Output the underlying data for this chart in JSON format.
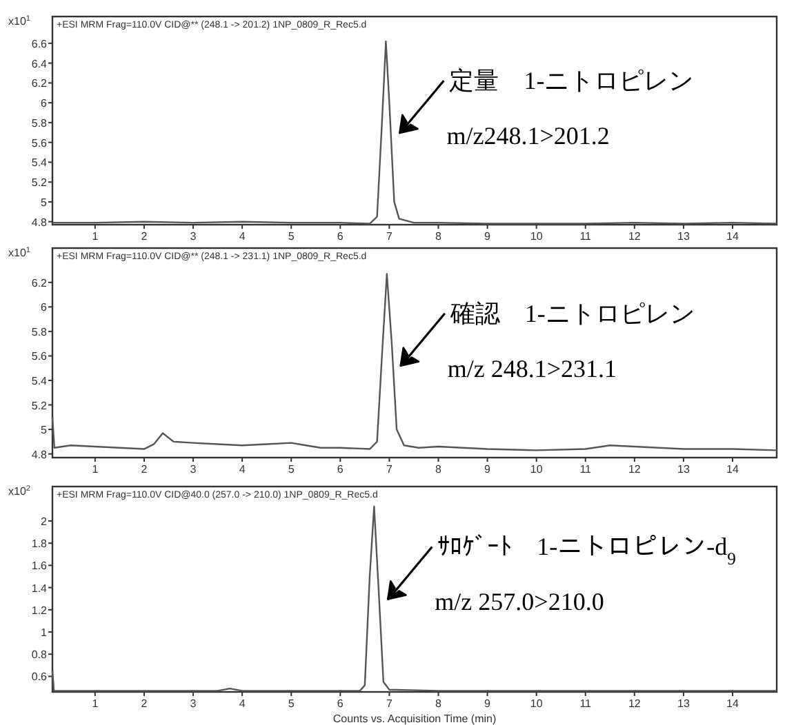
{
  "chart_data": [
    {
      "type": "line",
      "title": "+ESI MRM Frag=110.0V CID@** (248.1 -> 201.2) 1NP_0809_R_Rec5.d",
      "ylabel": "x10$^{1}$",
      "xlim": [
        0.13,
        14.9
      ],
      "ylim": [
        4.77,
        6.87
      ],
      "xticks": [
        1,
        2,
        3,
        4,
        5,
        6,
        7,
        8,
        9,
        10,
        11,
        12,
        13,
        14
      ],
      "yticks": [
        4.8,
        5,
        5.2,
        5.4,
        5.6,
        5.8,
        6,
        6.2,
        6.4,
        6.6
      ],
      "grid": false,
      "x": [
        0.13,
        1,
        2,
        3,
        4,
        5,
        6,
        6.6,
        6.75,
        6.85,
        6.93,
        7.0,
        7.1,
        7.2,
        7.5,
        8,
        9,
        10,
        11,
        12,
        13,
        14,
        14.9
      ],
      "series": [
        {
          "color": "#555555",
          "values": [
            4.79,
            4.79,
            4.8,
            4.79,
            4.8,
            4.79,
            4.79,
            4.78,
            4.85,
            5.8,
            6.62,
            6.0,
            5.0,
            4.83,
            4.79,
            4.79,
            4.78,
            4.78,
            4.78,
            4.79,
            4.78,
            4.79,
            4.78
          ]
        }
      ],
      "annotations": [
        "定量　1-ニトロピレン",
        "m/z248.1>201.2"
      ]
    },
    {
      "type": "line",
      "title": "+ESI MRM Frag=110.0V CID@** (248.1 -> 231.1) 1NP_0809_R_Rec5.d",
      "ylabel": "x10$^{1}$",
      "xlim": [
        0.13,
        14.9
      ],
      "ylim": [
        4.77,
        6.48
      ],
      "xticks": [
        1,
        2,
        3,
        4,
        5,
        6,
        7,
        8,
        9,
        10,
        11,
        12,
        13,
        14
      ],
      "yticks": [
        4.8,
        5,
        5.2,
        5.4,
        5.6,
        5.8,
        6,
        6.2
      ],
      "grid": false,
      "x": [
        0.13,
        0.17,
        0.5,
        1,
        1.5,
        2,
        2.2,
        2.38,
        2.6,
        3,
        3.5,
        4,
        4.5,
        5,
        5.3,
        5.6,
        6,
        6.6,
        6.75,
        6.85,
        6.95,
        7.05,
        7.15,
        7.3,
        7.6,
        8,
        9,
        10,
        11,
        11.5,
        12,
        12.5,
        13,
        14,
        14.9
      ],
      "series": [
        {
          "color": "#555555",
          "values": [
            5.1,
            4.85,
            4.87,
            4.86,
            4.85,
            4.84,
            4.88,
            4.97,
            4.9,
            4.89,
            4.88,
            4.87,
            4.88,
            4.89,
            4.87,
            4.85,
            4.85,
            4.84,
            4.9,
            5.6,
            6.27,
            5.7,
            5.0,
            4.87,
            4.85,
            4.86,
            4.84,
            4.83,
            4.84,
            4.87,
            4.86,
            4.85,
            4.84,
            4.84,
            4.83
          ]
        }
      ],
      "annotations": [
        "確認　1-ニトロピレン",
        "m/z 248.1>231.1"
      ]
    },
    {
      "type": "line",
      "title": "+ESI MRM Frag=110.0V CID@40.0 (257.0 -> 210.0) 1NP_0809_R_Rec5.d",
      "ylabel": "x10$^{2}$",
      "xlabel": "Counts vs. Acquisition Time (min)",
      "xlim": [
        0.13,
        14.9
      ],
      "ylim": [
        0.46,
        2.31
      ],
      "xticks": [
        1,
        2,
        3,
        4,
        5,
        6,
        7,
        8,
        9,
        10,
        11,
        12,
        13,
        14
      ],
      "yticks": [
        0.6,
        0.8,
        1,
        1.2,
        1.4,
        1.6,
        1.8,
        2
      ],
      "grid": false,
      "x": [
        0.13,
        0.16,
        1,
        3.5,
        3.75,
        4,
        6.4,
        6.5,
        6.6,
        6.69,
        6.78,
        6.88,
        7.0,
        8,
        14.9
      ],
      "series": [
        {
          "color": "#555555",
          "values": [
            0.65,
            0.47,
            0.47,
            0.47,
            0.49,
            0.47,
            0.47,
            0.52,
            1.5,
            2.13,
            1.4,
            0.55,
            0.48,
            0.47,
            0.47
          ]
        }
      ],
      "annotations": [
        "ｻﾛｹﾞｰﾄ　1-ニトロピレン-d$_{9}$",
        "m/z 257.0>210.0"
      ]
    }
  ]
}
